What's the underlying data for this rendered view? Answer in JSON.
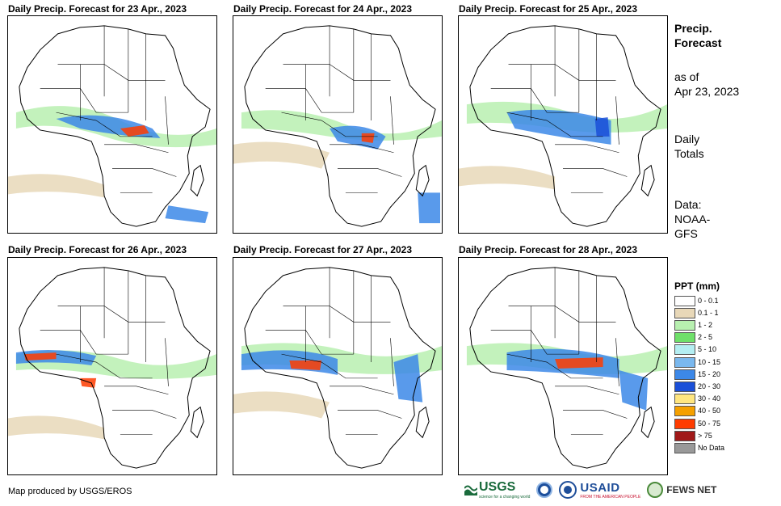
{
  "panels": [
    {
      "title": "Daily Precip. Forecast for 23 Apr., 2023"
    },
    {
      "title": "Daily Precip. Forecast for 24 Apr., 2023"
    },
    {
      "title": "Daily Precip. Forecast for 25 Apr., 2023"
    },
    {
      "title": "Daily Precip. Forecast for 26 Apr., 2023"
    },
    {
      "title": "Daily Precip. Forecast for 27 Apr., 2023"
    },
    {
      "title": "Daily Precip. Forecast for 28 Apr., 2023"
    }
  ],
  "sidebar": {
    "heading_line1": "Precip.",
    "heading_line2": "Forecast",
    "asof_line1": "as of",
    "asof_line2": "Apr 23, 2023",
    "totals_line1": "Daily",
    "totals_line2": "Totals",
    "data_line1": "Data:",
    "data_line2": "NOAA-",
    "data_line3": "GFS"
  },
  "legend": {
    "title": "PPT (mm)",
    "items": [
      {
        "label": "0 - 0.1",
        "color": "#ffffff"
      },
      {
        "label": "0.1 - 1",
        "color": "#e8d8b8"
      },
      {
        "label": "1 - 2",
        "color": "#b8f0b0"
      },
      {
        "label": "2 - 5",
        "color": "#6fe06a"
      },
      {
        "label": "5 - 10",
        "color": "#b4eef2"
      },
      {
        "label": "10 - 15",
        "color": "#7ab8ee"
      },
      {
        "label": "15 - 20",
        "color": "#3c88e8"
      },
      {
        "label": "20 - 30",
        "color": "#1a4fd8"
      },
      {
        "label": "30 - 40",
        "color": "#ffe680"
      },
      {
        "label": "40 - 50",
        "color": "#f5a000"
      },
      {
        "label": "50 - 75",
        "color": "#ff3c00"
      },
      {
        "label": "> 75",
        "color": "#a01818"
      },
      {
        "label": "No Data",
        "color": "#999999"
      }
    ]
  },
  "credit": "Map produced by USGS/EROS",
  "logos": {
    "usgs": "USGS",
    "usgs_tag": "science for a changing world",
    "usaid": "USAID",
    "usaid_tag": "FROM THE AMERICAN PEOPLE",
    "fews": "FEWS NET"
  }
}
